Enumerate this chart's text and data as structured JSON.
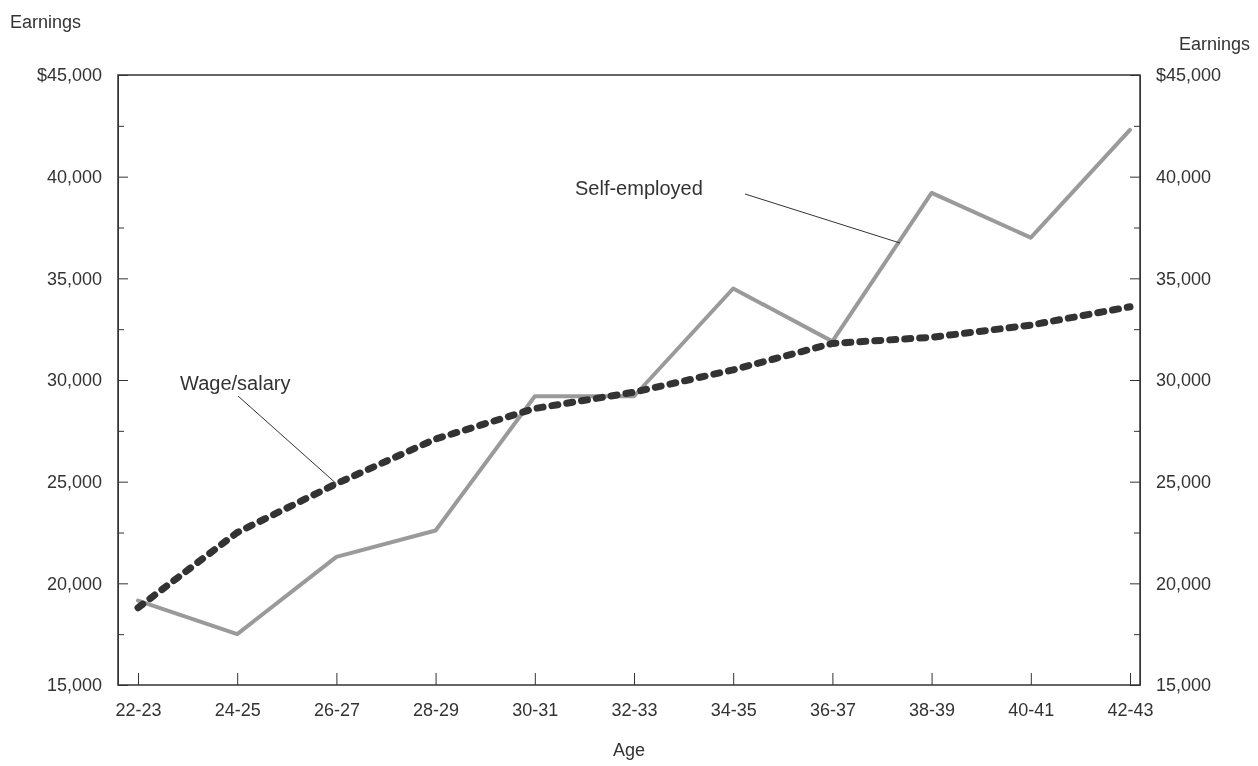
{
  "chart_data": {
    "type": "line",
    "xlabel": "Age",
    "ylabel": "Earnings",
    "y2label": "Earnings",
    "categories": [
      "22-23",
      "24-25",
      "26-27",
      "28-29",
      "30-31",
      "32-33",
      "34-35",
      "36-37",
      "38-39",
      "40-41",
      "42-43"
    ],
    "series": [
      {
        "color": "#9a9a9a",
        "line_style": "solid",
        "values": [
          19150,
          17500,
          21300,
          22600,
          29200,
          29200,
          34500,
          31900,
          39200,
          37000,
          42300
        ]
      },
      {
        "color": "#333333",
        "line_style": "dotted",
        "values": [
          18800,
          22500,
          24900,
          27100,
          28600,
          29400,
          30500,
          31800,
          32100,
          32700,
          33600
        ]
      }
    ],
    "annotations": [
      "Self-employed",
      {
        "text": "Wage/salary",
        "x": "26-27",
        "y": 24900
      }
    ],
    "ylim": [
      15000,
      45000
    ],
    "yticks": [
      {
        "value": 15000,
        "label": "15,000"
      },
      {
        "value": 17500,
        "label": null
      },
      {
        "value": 20000,
        "label": "20,000"
      },
      {
        "value": 22500,
        "label": null
      },
      {
        "value": 25000,
        "label": "25,000"
      },
      {
        "value": 27500,
        "label": null
      },
      {
        "value": 30000,
        "label": "30,000"
      },
      {
        "value": 32500,
        "label": null
      },
      {
        "value": 35000,
        "label": "35,000"
      },
      {
        "value": 37500,
        "label": null
      },
      {
        "value": 40000,
        "label": "40,000"
      },
      {
        "value": 42500,
        "label": null
      },
      {
        "value": 45000,
        "label": "$45,000"
      }
    ],
    "y2lim": [
      15000,
      45000
    ],
    "y2ticks": [
      {
        "value": 15000,
        "label": "15,000"
      },
      {
        "value": 17500,
        "label": null
      },
      {
        "value": 20000,
        "label": "20,000"
      },
      {
        "value": 22500,
        "label": null
      },
      {
        "value": 25000,
        "label": "25,000"
      },
      {
        "value": 27500,
        "label": null
      },
      {
        "value": 30000,
        "label": "30,000"
      },
      {
        "value": 32500,
        "label": null
      },
      {
        "value": 35000,
        "label": "35,000"
      },
      {
        "value": 37500,
        "label": null
      },
      {
        "value": 40000,
        "label": "40,000"
      },
      {
        "value": 42500,
        "label": null
      },
      {
        "value": 45000,
        "label": "$45,000"
      }
    ]
  }
}
